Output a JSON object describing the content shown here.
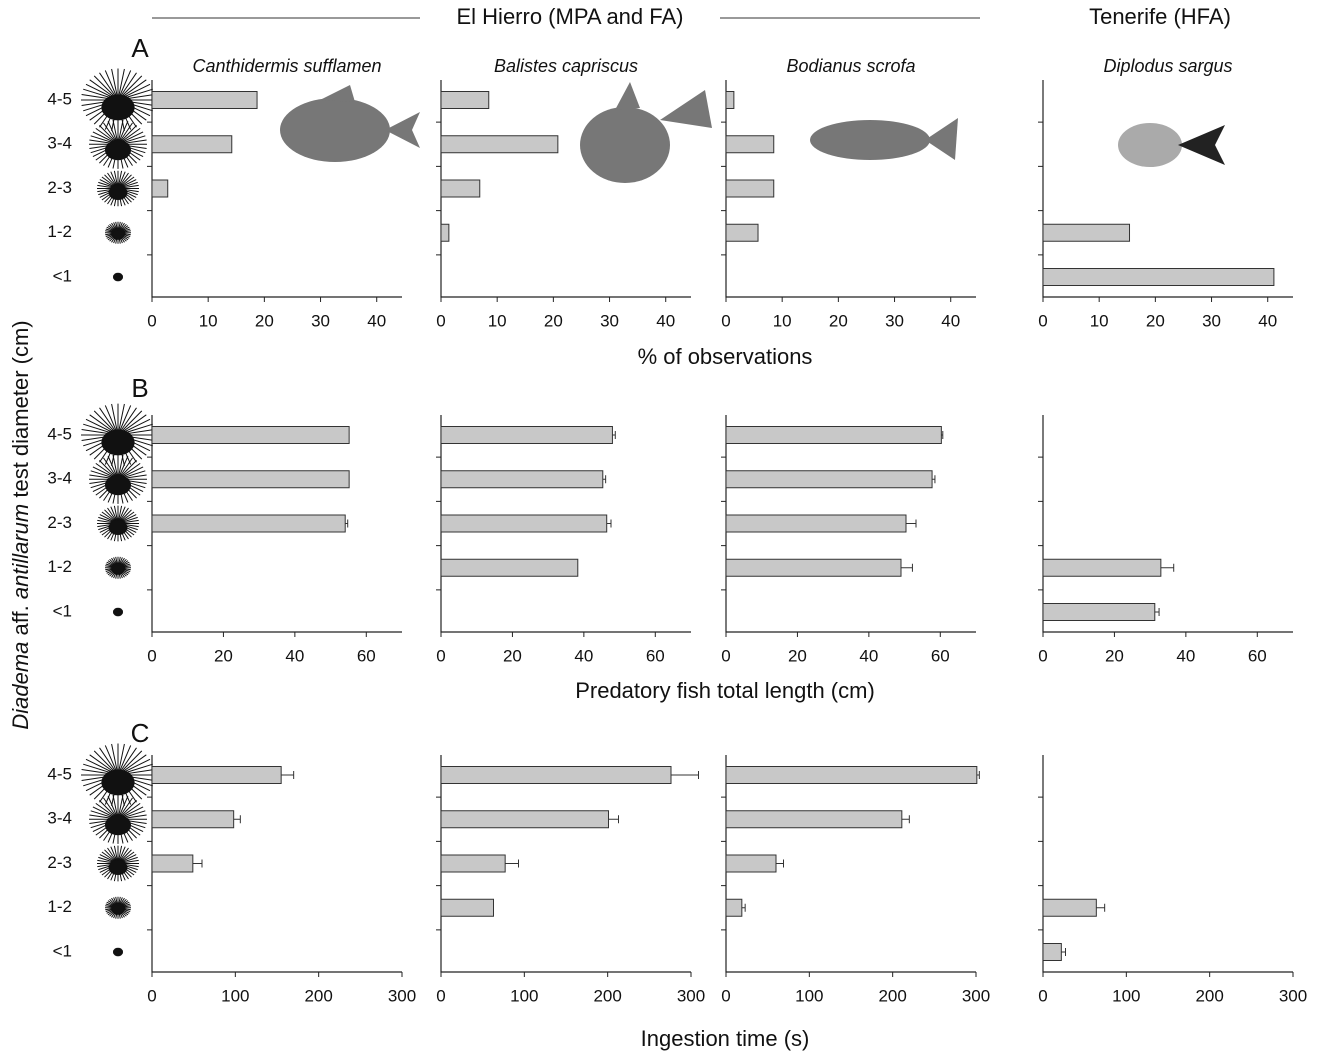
{
  "figure": {
    "groups": [
      "El Hierro (MPA and FA)",
      "Tenerife (HFA)"
    ],
    "y_label": [
      "Diadema",
      "aff.",
      "antillarum",
      "test diameter (cm)"
    ]
  },
  "chart_data": [
    {
      "type": "bar",
      "orientation": "horizontal",
      "panel_label": "A",
      "xlabel": "% of observations",
      "categories": [
        "4-5",
        "3-4",
        "2-3",
        "1-2",
        "<1"
      ],
      "xlim": [
        0,
        44.5
      ],
      "xticks": [
        0,
        10,
        20,
        30,
        40
      ],
      "color": "#c8c8c8",
      "panels": [
        {
          "title": "Canthidermis sufflamen",
          "values": [
            18.7,
            14.2,
            2.8,
            null,
            null
          ]
        },
        {
          "title": "Balistes capriscus",
          "values": [
            8.5,
            20.8,
            6.9,
            1.4,
            null
          ]
        },
        {
          "title": "Bodianus scrofa",
          "values": [
            1.4,
            8.5,
            8.5,
            5.7,
            null
          ]
        },
        {
          "title": "Diplodus sargus",
          "values": [
            null,
            null,
            null,
            15.4,
            41.1
          ]
        }
      ]
    },
    {
      "type": "bar",
      "orientation": "horizontal",
      "panel_label": "B",
      "xlabel": "Predatory fish total length (cm)",
      "categories": [
        "4-5",
        "3-4",
        "2-3",
        "1-2",
        "<1"
      ],
      "xlim": [
        0,
        70
      ],
      "xticks": [
        0,
        20,
        40,
        60
      ],
      "color": "#c8c8c8",
      "panels": [
        {
          "values": [
            55.2,
            55.2,
            54.1,
            null,
            null
          ],
          "errors": [
            null,
            null,
            0.7,
            null,
            null
          ]
        },
        {
          "values": [
            48.0,
            45.3,
            46.4,
            38.3,
            null
          ],
          "errors": [
            0.8,
            0.8,
            1.2,
            null,
            null
          ]
        },
        {
          "values": [
            60.3,
            57.7,
            50.4,
            49.0,
            null
          ],
          "errors": [
            0.4,
            0.8,
            2.8,
            3.2,
            null
          ]
        },
        {
          "values": [
            null,
            null,
            null,
            33.0,
            31.3
          ],
          "errors": [
            null,
            null,
            null,
            3.6,
            1.2
          ]
        }
      ]
    },
    {
      "type": "bar",
      "orientation": "horizontal",
      "panel_label": "C",
      "xlabel": "Ingestion time (s)",
      "categories": [
        "4-5",
        "3-4",
        "2-3",
        "1-2",
        "<1"
      ],
      "xlim": [
        0,
        300
      ],
      "xticks": [
        0,
        100,
        200,
        300
      ],
      "color": "#c8c8c8",
      "panels": [
        {
          "values": [
            155,
            98,
            49,
            null,
            null
          ],
          "errors": [
            15,
            8,
            11,
            null,
            null
          ]
        },
        {
          "values": [
            276,
            201,
            77,
            63,
            null
          ],
          "errors": [
            33,
            12,
            16,
            null,
            null
          ]
        },
        {
          "values": [
            301,
            211,
            60,
            19,
            null
          ],
          "errors": [
            3,
            9,
            9,
            4,
            null
          ]
        },
        {
          "values": [
            null,
            null,
            null,
            64,
            22
          ],
          "errors": [
            null,
            null,
            null,
            10,
            5
          ]
        }
      ]
    }
  ]
}
